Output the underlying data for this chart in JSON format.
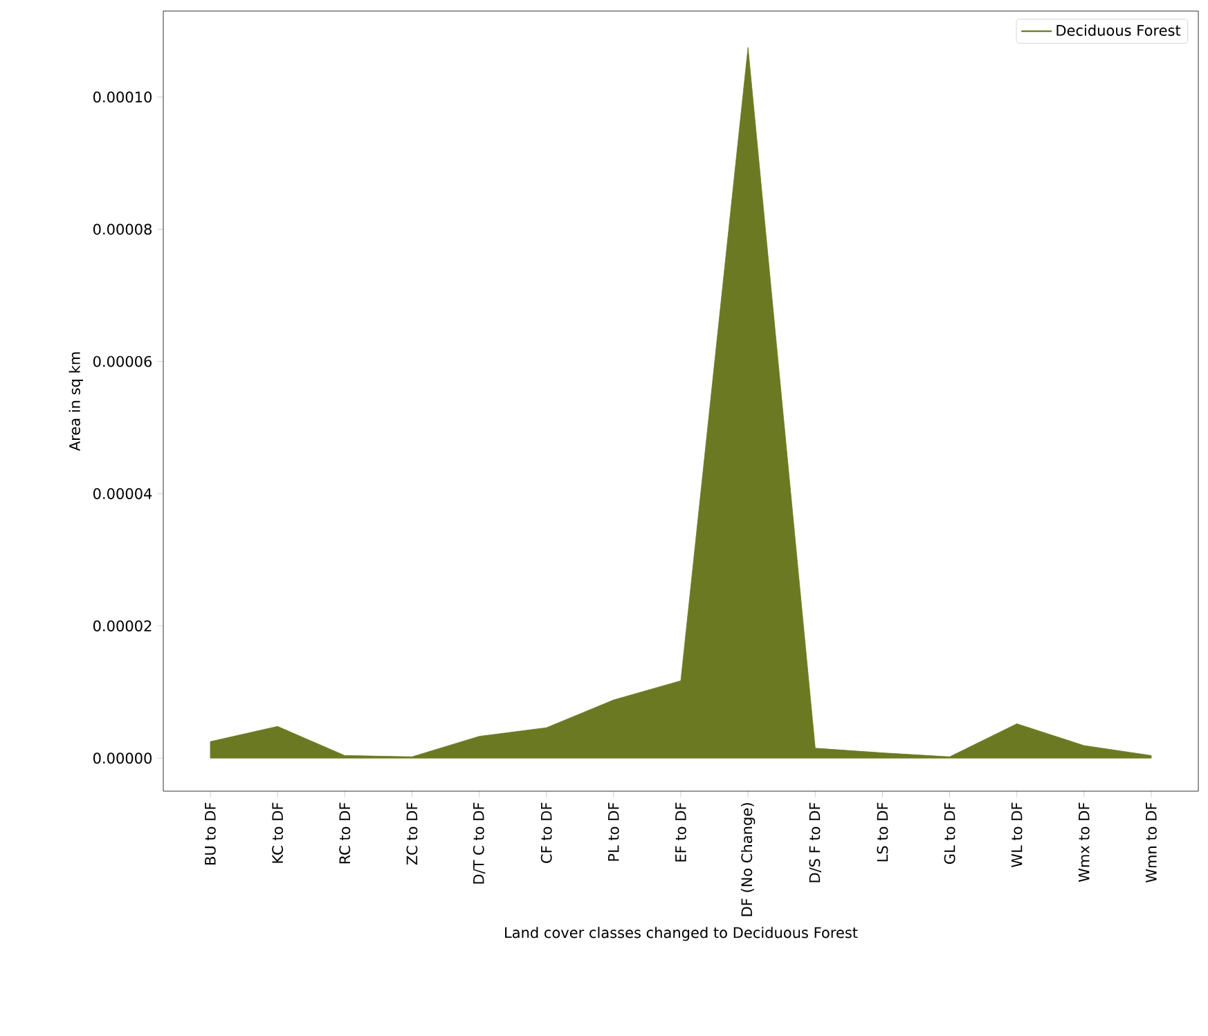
{
  "chart_data": {
    "type": "area",
    "xlabel": "Land cover classes changed to Deciduous Forest",
    "ylabel": "Area in sq km",
    "categories": [
      "BU to DF",
      "KC to DF",
      "RC to DF",
      "ZC to DF",
      "D/T C to DF",
      "CF to DF",
      "PL to DF",
      "EF to DF",
      "DF (No Change)",
      "D/S F to DF",
      "LS to DF",
      "GL to DF",
      "WL to DF",
      "Wmx to DF",
      "Wmn to DF"
    ],
    "series": [
      {
        "name": "Deciduous Forest",
        "color": "#6b7a22",
        "values": [
          2.5e-06,
          4.8e-06,
          4e-07,
          2e-07,
          3.3e-06,
          4.6e-06,
          8.8e-06,
          1.17e-05,
          0.0001075,
          1.5e-06,
          8e-07,
          2e-07,
          5.2e-06,
          1.9e-06,
          4e-07
        ]
      }
    ],
    "ylim": [
      -5e-06,
      0.000113
    ],
    "yticks": [
      {
        "value": 0,
        "label": "0.00000"
      },
      {
        "value": 2e-05,
        "label": "0.00002"
      },
      {
        "value": 4e-05,
        "label": "0.00004"
      },
      {
        "value": 6e-05,
        "label": "0.00006"
      },
      {
        "value": 8e-05,
        "label": "0.00008"
      },
      {
        "value": 0.0001,
        "label": "0.00010"
      }
    ],
    "legend": "top right"
  }
}
